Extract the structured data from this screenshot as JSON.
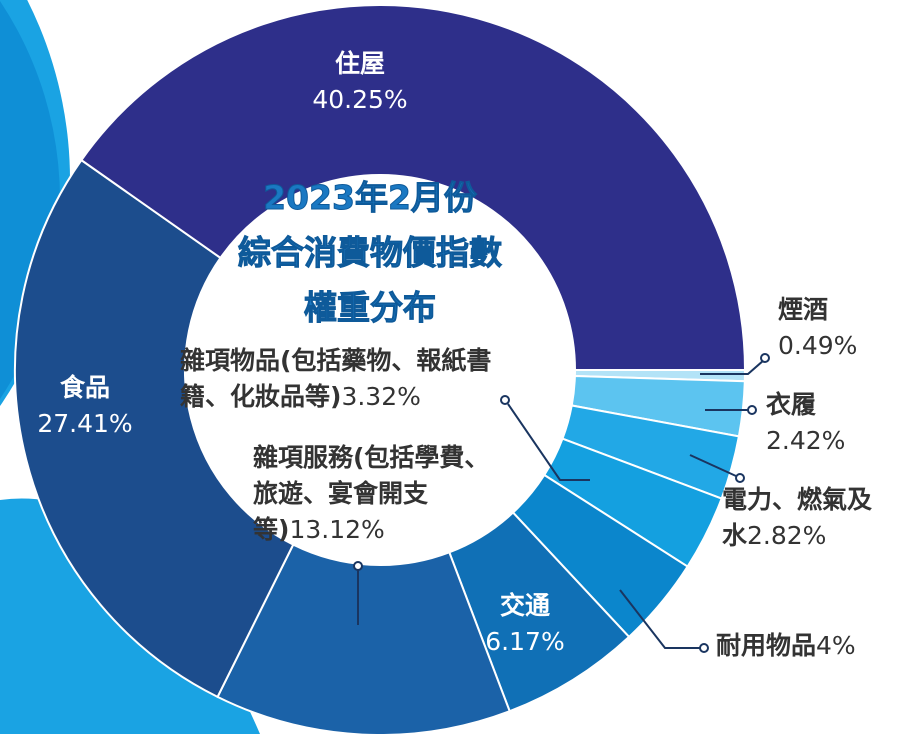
{
  "chart_data": {
    "type": "donut",
    "title": [
      "2023年2月份",
      "綜合消費物價指數",
      "權重分布"
    ],
    "categories": [
      "煙酒",
      "衣履",
      "電力、燃氣及水",
      "雜項物品(包括藥物、報紙書籍、化妝品等)",
      "耐用物品",
      "交通",
      "雜項服務(包括學費、旅遊、宴會開支等)",
      "食品",
      "住屋"
    ],
    "values": [
      0.49,
      2.42,
      2.82,
      3.32,
      4,
      6.17,
      13.12,
      27.41,
      40.25
    ],
    "value_labels": [
      "0.49%",
      "2.42%",
      "2.82%",
      "3.32%",
      "4%",
      "6.17%",
      "13.12%",
      "27.41%",
      "40.25%"
    ],
    "colors": [
      "#b3e3f7",
      "#5cc4f0",
      "#22a8e6",
      "#14a0e0",
      "#0b86cc",
      "#1070b6",
      "#1b62a8",
      "#1c4d8d",
      "#2e2f8a"
    ]
  }
}
